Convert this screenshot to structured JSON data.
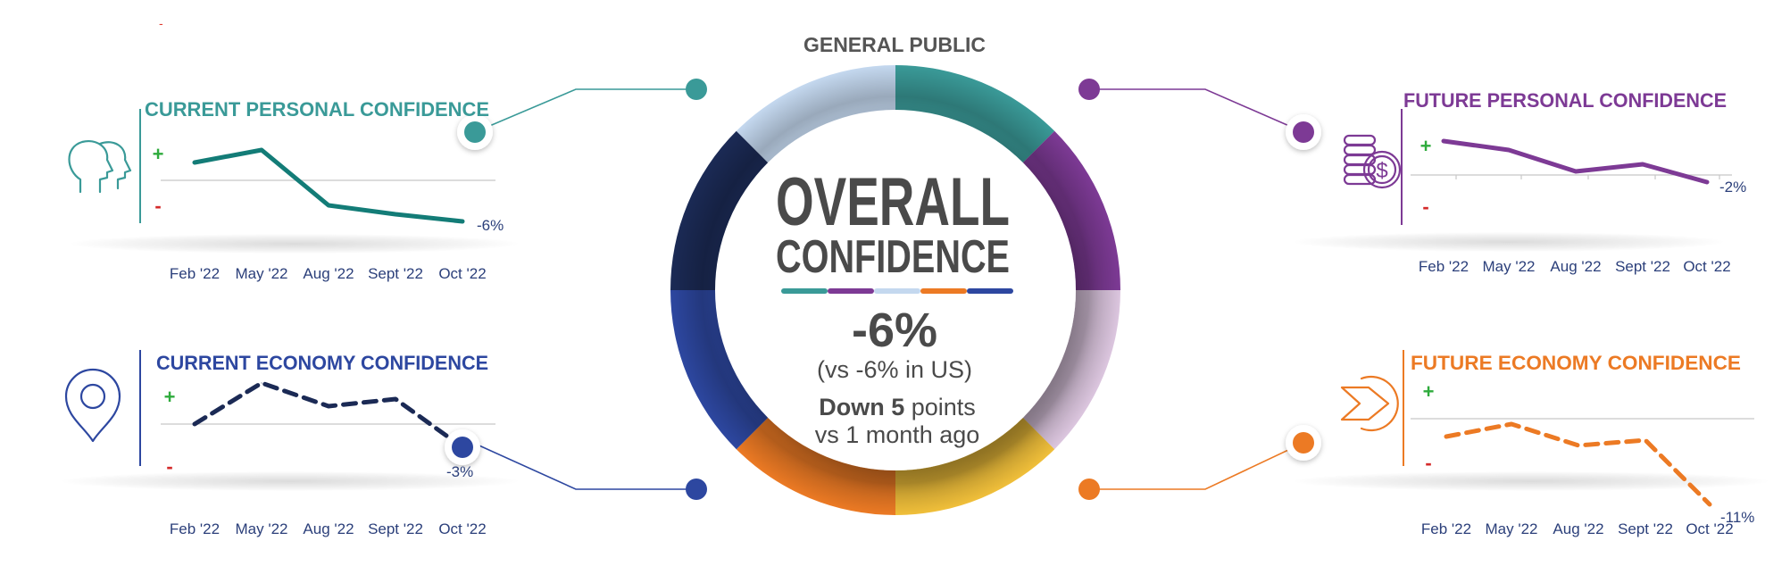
{
  "header": {
    "title": "GENERAL PUBLIC",
    "stray_mark": "-"
  },
  "center": {
    "line1": "OVERALL",
    "line2": "CONFIDENCE",
    "value": "-6%",
    "comparison": "(vs -6% in US)",
    "change_bold": "Down 5",
    "change_rest": " points",
    "change_line2": "vs 1 month ago"
  },
  "colors": {
    "teal": "#3a9a98",
    "tealDark": "#137c77",
    "purple": "#7d3a95",
    "purpleLight": "#dcc6df",
    "lightBlue": "#c4d8ef",
    "navy": "#1b2a55",
    "blue": "#2d47a0",
    "orange": "#ec7a24",
    "gold": "#f0bf3a",
    "gray": "#4a4a4a",
    "axisText": "#2b3f7a",
    "plus": "#2eab3c",
    "minus": "#d42a2a"
  },
  "ring_segments": [
    "teal",
    "purple",
    "purpleLight",
    "gold",
    "orange",
    "blue",
    "navy",
    "lightBlue"
  ],
  "chart_data": [
    {
      "type": "line",
      "title": "CURRENT PERSONAL CONFIDENCE",
      "icon": "two-heads-icon",
      "color": "tealDark",
      "title_color": "teal",
      "dashed": false,
      "categories": [
        "Feb '22",
        "May '22",
        "Aug '22",
        "Sept '22",
        "Oct '22"
      ],
      "values": [
        1.0,
        1.7,
        -1.4,
        -1.9,
        -2.3
      ],
      "end_label": "-6%",
      "plus_label": "+",
      "minus_label": "-"
    },
    {
      "type": "line",
      "title": "FUTURE PERSONAL CONFIDENCE",
      "icon": "coins-icon",
      "color": "purple",
      "title_color": "purple",
      "dashed": false,
      "categories": [
        "Feb '22",
        "May '22",
        "Aug '22",
        "Sept '22",
        "Oct '22"
      ],
      "values": [
        1.9,
        1.4,
        0.2,
        0.6,
        -0.4
      ],
      "end_label": "-2%",
      "plus_label": "+",
      "minus_label": "-"
    },
    {
      "type": "line",
      "title": "CURRENT ECONOMY CONFIDENCE",
      "icon": "location-pin-icon",
      "color": "navy",
      "title_color": "blue",
      "dashed": true,
      "categories": [
        "Feb '22",
        "May '22",
        "Aug '22",
        "Sept '22",
        "Oct '22"
      ],
      "values": [
        0.0,
        2.3,
        1.0,
        1.4,
        -1.3
      ],
      "end_label": "-3%",
      "plus_label": "+",
      "minus_label": "-"
    },
    {
      "type": "line",
      "title": "FUTURE ECONOMY CONFIDENCE",
      "icon": "arrow-forward-icon",
      "color": "orange",
      "title_color": "orange",
      "dashed": true,
      "categories": [
        "Feb '22",
        "May '22",
        "Aug '22",
        "Sept '22",
        "Oct '22"
      ],
      "values": [
        -1.0,
        -0.3,
        -1.5,
        -1.2,
        -4.8
      ],
      "end_label": "-11%",
      "plus_label": "+",
      "minus_label": "-"
    }
  ]
}
